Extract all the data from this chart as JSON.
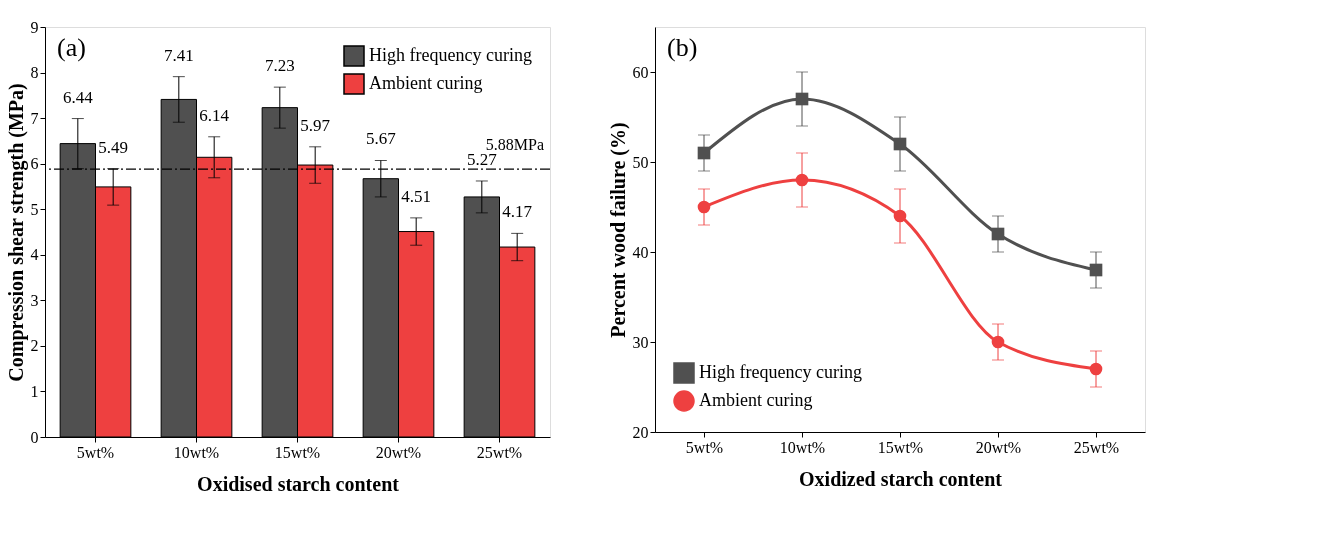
{
  "chart_data": [
    {
      "type": "bar",
      "annotations": [
        "(a)"
      ],
      "xlabel": "Oxidised starch content",
      "ylabel": "Compression shear strength (MPa)",
      "categories": [
        "5wt%",
        "10wt%",
        "15wt%",
        "20wt%",
        "25wt%"
      ],
      "series": [
        {
          "name": "High frequency curing",
          "color": "#505050",
          "values": [
            6.44,
            7.41,
            7.23,
            5.67,
            5.27
          ],
          "errors": [
            0.55,
            0.5,
            0.45,
            0.4,
            0.35
          ]
        },
        {
          "name": "Ambient curing",
          "color": "#ee4040",
          "values": [
            5.49,
            6.14,
            5.97,
            4.51,
            4.17
          ],
          "errors": [
            0.4,
            0.45,
            0.4,
            0.3,
            0.3
          ]
        }
      ],
      "ylim": [
        0,
        9
      ],
      "yticks": [
        0,
        1,
        2,
        3,
        4,
        5,
        6,
        7,
        8,
        9
      ],
      "grid": false,
      "legend": "top right",
      "data_labels": true,
      "ref_lines": [
        {
          "axis": "y",
          "value": 5.88,
          "label": "5.88MPa",
          "line_style": "dashdot"
        }
      ]
    },
    {
      "type": "line",
      "annotations": [
        "(b)"
      ],
      "xlabel": "Oxidized starch content",
      "ylabel": "Percent wood failure (%)",
      "categories": [
        "5wt%",
        "10wt%",
        "15wt%",
        "20wt%",
        "25wt%"
      ],
      "series": [
        {
          "name": "High frequency curing",
          "color": "#505050",
          "marker": "square",
          "values": [
            51,
            57,
            52,
            42,
            38
          ],
          "errors": [
            2,
            3,
            3,
            2,
            2
          ]
        },
        {
          "name": "Ambient curing",
          "color": "#ee4040",
          "marker": "circle",
          "values": [
            45,
            48,
            44,
            30,
            27
          ],
          "errors": [
            2,
            3,
            3,
            2,
            2
          ]
        }
      ],
      "ylim": [
        20,
        65
      ],
      "yticks": [
        20,
        30,
        40,
        50,
        60
      ],
      "grid": false,
      "legend": "bottom left",
      "line_style": "solid"
    }
  ]
}
